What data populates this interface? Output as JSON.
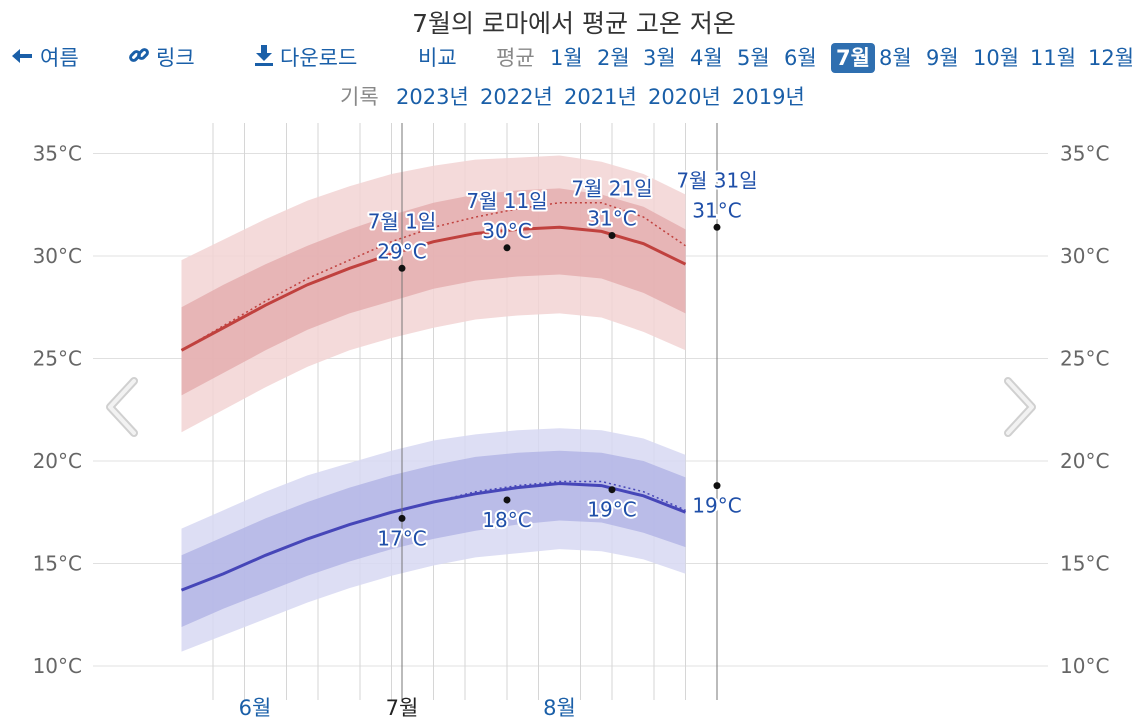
{
  "title": "7월의 로마에서 평균 고온 저온",
  "nav": {
    "back_label": "여름",
    "link_label": "링크",
    "download_label": "다운로드",
    "compare_label": "비교",
    "average_label": "평균",
    "months": [
      "1월",
      "2월",
      "3월",
      "4월",
      "5월",
      "6월",
      "7월",
      "8월",
      "9월",
      "10월",
      "11월",
      "12월"
    ],
    "active_month": "7월",
    "records_label": "기록",
    "years": [
      "2023년",
      "2022년",
      "2021년",
      "2020년",
      "2019년"
    ]
  },
  "chart_data": {
    "type": "line",
    "x_ticks": [
      {
        "day": 0,
        "label": "6월"
      },
      {
        "day": 14,
        "label": "7월"
      },
      {
        "day": 29,
        "label": "8월"
      }
    ],
    "day_grid": [
      -4,
      -1,
      3,
      6,
      10,
      13,
      17,
      20,
      24,
      27,
      31,
      34,
      38,
      41
    ],
    "ylim": [
      9,
      36
    ],
    "y_ticks": [
      10,
      15,
      20,
      25,
      30,
      35
    ],
    "y_tick_labels": [
      "10°C",
      "15°C",
      "20°C",
      "25°C",
      "30°C",
      "35°C"
    ],
    "legend_placement": "none",
    "grid": true,
    "colors": {
      "high_line": "#c0413e",
      "high_band_inner": "#e3a8aa",
      "high_band_outer": "#f2d3d4",
      "low_line": "#4646b8",
      "low_band_inner": "#aeb0e4",
      "low_band_outer": "#d7d8f2",
      "annotation_text": "#1f4fa8",
      "grid": "#e0e0e0",
      "marker_line": "#777777"
    },
    "series": [
      {
        "name": "",
        "role": "high",
        "x": [
          -7,
          -3,
          1,
          5,
          9,
          13,
          17,
          21,
          25,
          29,
          33,
          37,
          41
        ],
        "mean": [
          25.4,
          26.5,
          27.6,
          28.6,
          29.4,
          30.1,
          30.7,
          31.1,
          31.3,
          31.4,
          31.2,
          30.6,
          29.6
        ],
        "p25": [
          23.2,
          24.3,
          25.4,
          26.4,
          27.2,
          27.8,
          28.4,
          28.8,
          29.0,
          29.1,
          28.9,
          28.2,
          27.2
        ],
        "p75": [
          27.5,
          28.6,
          29.6,
          30.5,
          31.3,
          32.0,
          32.6,
          33.0,
          33.2,
          33.3,
          33.0,
          32.4,
          31.3
        ],
        "p10": [
          21.4,
          22.5,
          23.6,
          24.6,
          25.4,
          26.0,
          26.5,
          26.9,
          27.1,
          27.2,
          27.0,
          26.3,
          25.4
        ],
        "p90": [
          29.8,
          30.8,
          31.8,
          32.7,
          33.4,
          34.0,
          34.4,
          34.7,
          34.8,
          34.9,
          34.6,
          34.0,
          33.0
        ],
        "dotted": [
          25.4,
          26.6,
          27.8,
          28.9,
          29.8,
          30.7,
          31.4,
          31.9,
          32.3,
          32.6,
          32.6,
          31.9,
          30.5
        ]
      },
      {
        "name": "",
        "role": "low",
        "x": [
          -7,
          -3,
          1,
          5,
          9,
          13,
          17,
          21,
          25,
          29,
          33,
          37,
          41
        ],
        "mean": [
          13.7,
          14.5,
          15.4,
          16.2,
          16.9,
          17.5,
          18.0,
          18.4,
          18.7,
          18.9,
          18.8,
          18.3,
          17.5
        ],
        "p25": [
          11.9,
          12.8,
          13.6,
          14.4,
          15.1,
          15.7,
          16.2,
          16.6,
          16.9,
          17.1,
          17.0,
          16.5,
          15.8
        ],
        "p75": [
          15.4,
          16.3,
          17.2,
          18.0,
          18.7,
          19.3,
          19.8,
          20.2,
          20.4,
          20.5,
          20.4,
          20.0,
          19.2
        ],
        "p10": [
          10.7,
          11.5,
          12.3,
          13.1,
          13.8,
          14.4,
          14.9,
          15.3,
          15.5,
          15.7,
          15.6,
          15.2,
          14.5
        ],
        "p90": [
          16.7,
          17.6,
          18.5,
          19.3,
          19.9,
          20.5,
          21.0,
          21.3,
          21.5,
          21.6,
          21.5,
          21.1,
          20.3
        ],
        "dotted": [
          13.7,
          14.5,
          15.4,
          16.2,
          16.9,
          17.5,
          18.0,
          18.5,
          18.8,
          19.0,
          19.0,
          18.5,
          17.6
        ]
      }
    ],
    "annotations": [
      {
        "day": 14,
        "date": "7월 1일",
        "high": 29.4,
        "high_label": "29°C",
        "low": 17.2,
        "low_label": "17°C"
      },
      {
        "day": 24,
        "date": "7월 11일",
        "high": 30.4,
        "high_label": "30°C",
        "low": 18.1,
        "low_label": "18°C"
      },
      {
        "day": 34,
        "date": "7월 21일",
        "high": 31.0,
        "high_label": "31°C",
        "low": 18.6,
        "low_label": "19°C"
      },
      {
        "day": 44,
        "date": "7월 31일",
        "high": 31.4,
        "high_label": "31°C",
        "low": 18.8,
        "low_label": "19°C"
      }
    ],
    "marker_days": [
      14,
      44
    ]
  }
}
